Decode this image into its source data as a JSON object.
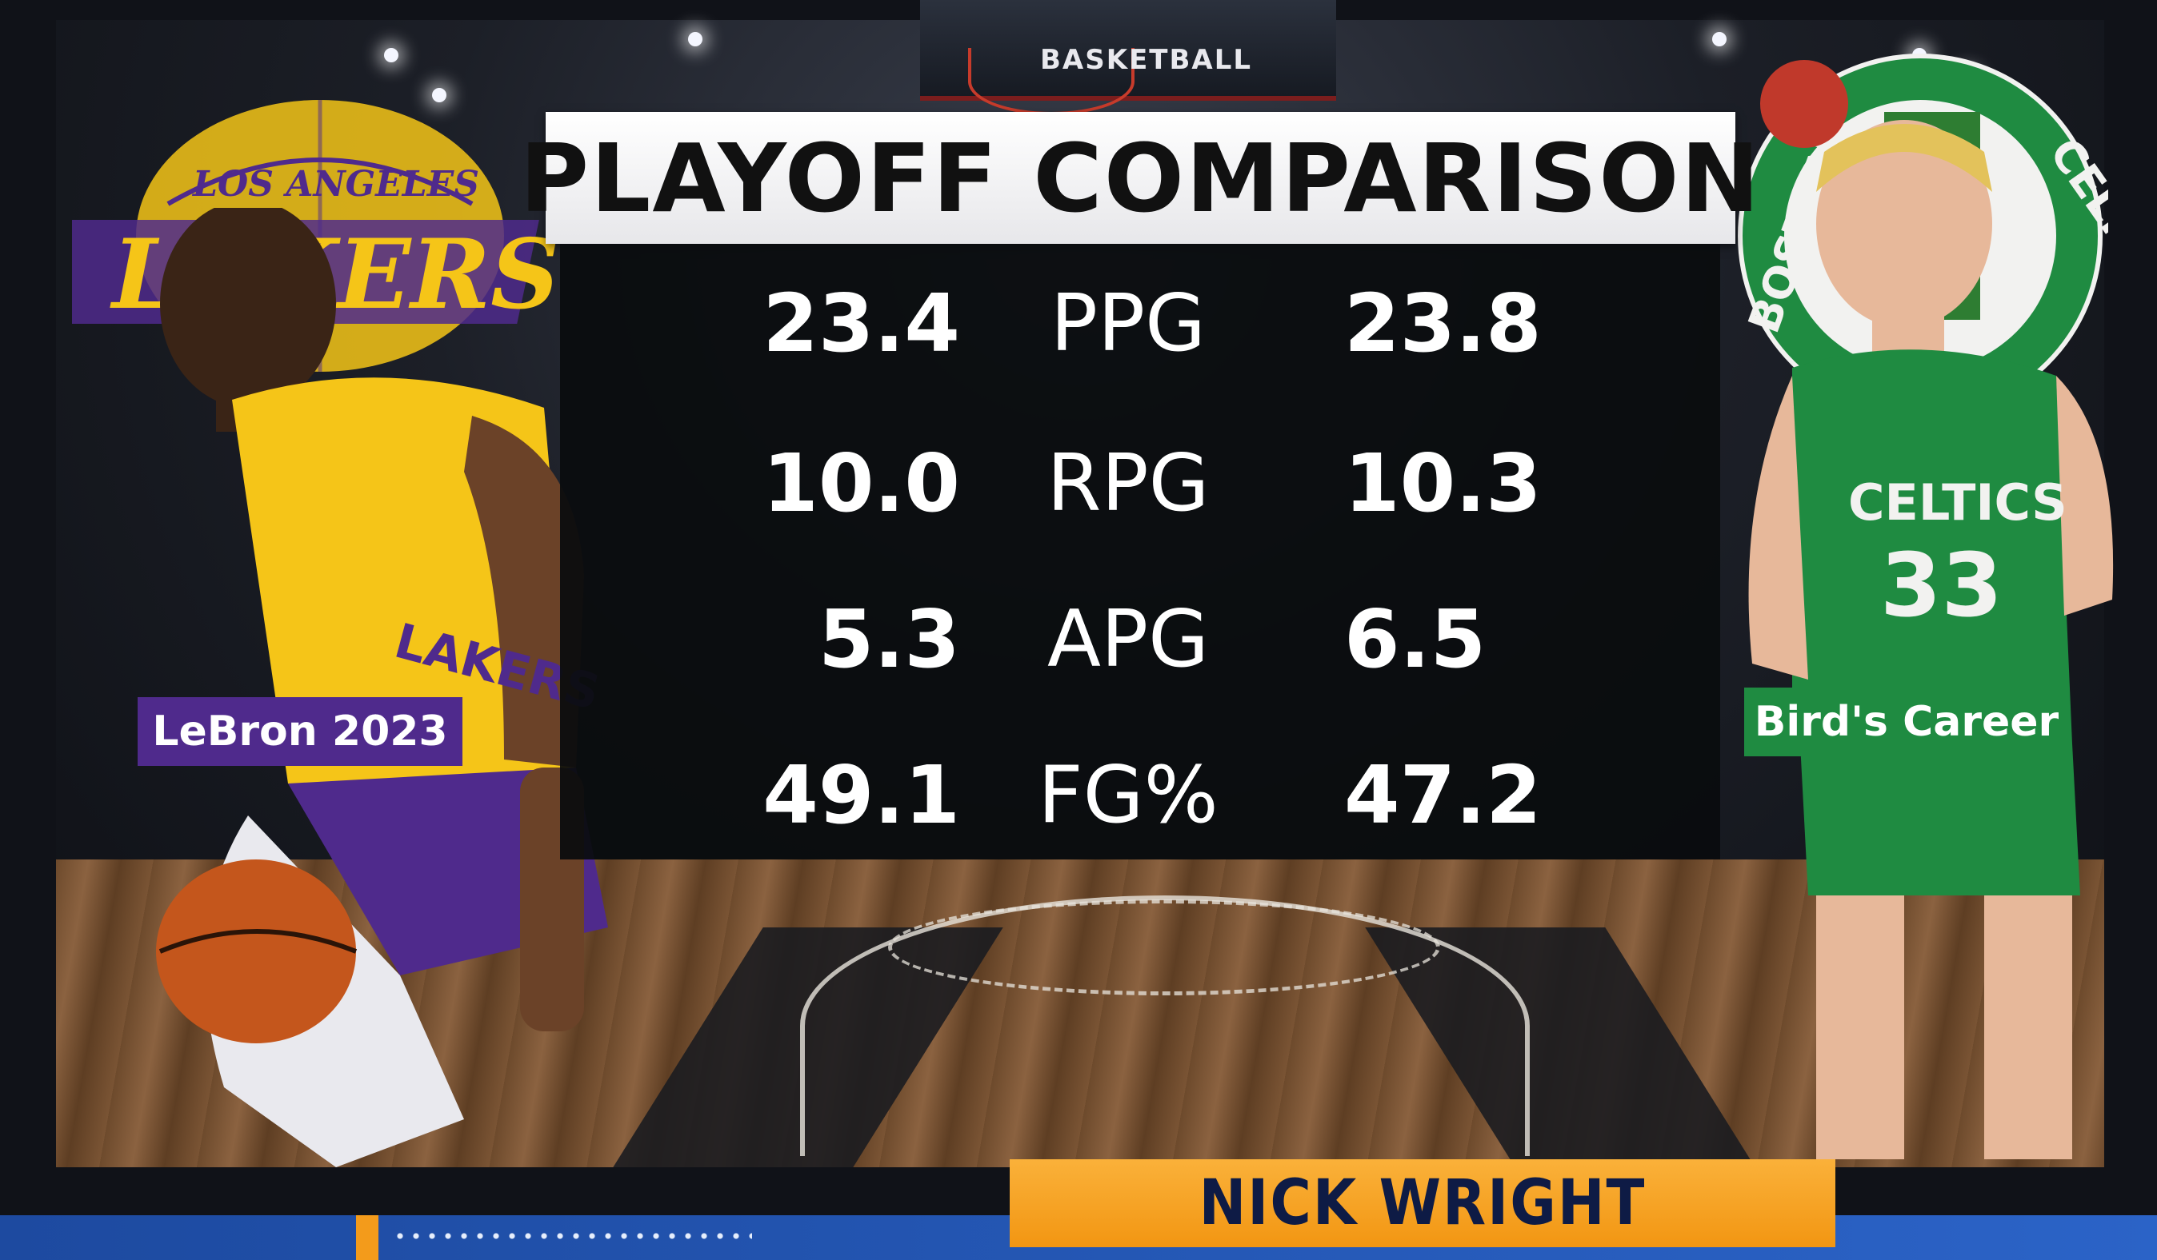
{
  "graphic": {
    "backboard_text": "BASKETBALL",
    "title": "PLAYOFF COMPARISON",
    "left_team_logo_text": "LOS ANGELES LAKERS",
    "right_team_logo_text": "BOSTON CELTICS",
    "left_label": "LeBron 2023",
    "right_label": "Bird's Career",
    "left_jersey": "LAKERS",
    "right_jersey": "CELTICS 33",
    "stats": [
      {
        "left": "23.4",
        "stat": "PPG",
        "right": "23.8"
      },
      {
        "left": "10.0",
        "stat": "RPG",
        "right": "10.3"
      },
      {
        "left": "5.3",
        "stat": "APG",
        "right": "6.5"
      },
      {
        "left": "49.1",
        "stat": "FG%",
        "right": "47.2"
      }
    ]
  },
  "lower_third": {
    "speaker_name": "NICK WRIGHT"
  },
  "colors": {
    "lakers_purple": "#4f2a8c",
    "lakers_gold": "#f5c518",
    "celtics_green": "#1f8b41",
    "name_plate_orange": "#f5a623",
    "strip_blue": "#2456b3"
  }
}
